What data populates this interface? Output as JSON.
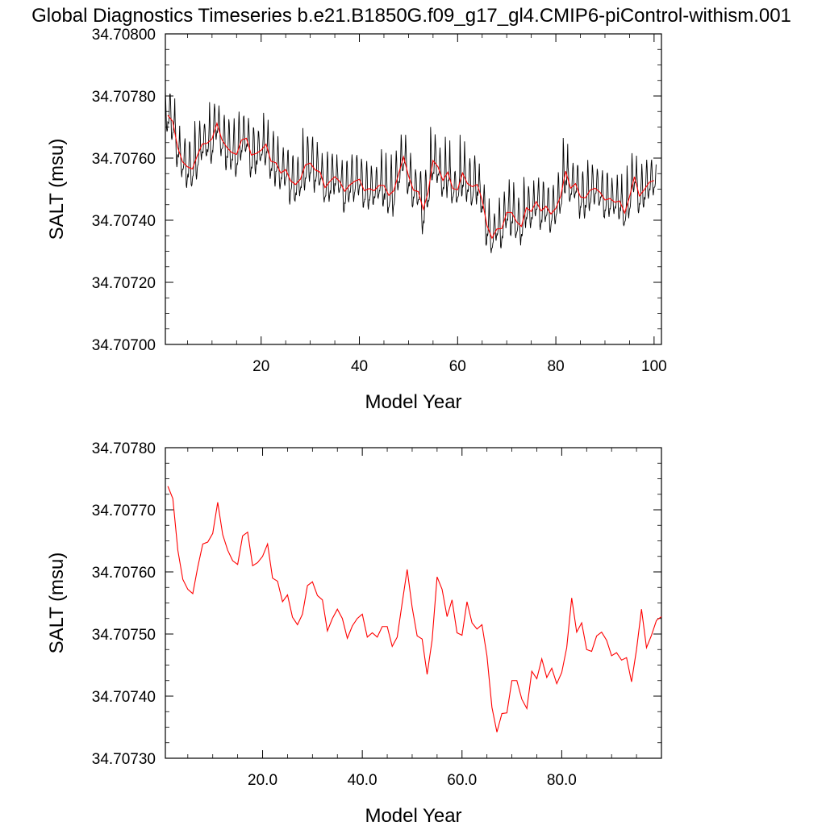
{
  "title": "Global Diagnostics Timeseries b.e21.B1850G.f09_g17_gl4.CMIP6-piControl-withism.001",
  "colors": {
    "monthly": "#000000",
    "annual": "#ff0000",
    "axis": "#000000"
  },
  "chart_data": [
    {
      "type": "line",
      "xlabel": "Model Year",
      "ylabel": "SALT (msu)",
      "xlim": [
        0.5,
        101.5
      ],
      "ylim": [
        34.707,
        34.708
      ],
      "x_ticks": [
        20,
        40,
        60,
        80,
        100
      ],
      "x_tick_labels": [
        "20",
        "40",
        "60",
        "80",
        "100"
      ],
      "y_ticks": [
        34.707,
        34.7072,
        34.7074,
        34.7076,
        34.7078,
        34.708
      ],
      "y_tick_labels": [
        "34.70700",
        "34.70720",
        "34.70740",
        "34.70760",
        "34.70780",
        "34.70800"
      ],
      "grid": false,
      "series": [
        {
          "color": "#000000",
          "description": "monthly seasonal cycle, one sample per month (derived from the annual series plus seasonal amplitude)",
          "seasonal_amplitude": [
            0.0001,
            0.00013,
            0.0001,
            8e-05,
            0.00014,
            0.0001,
            0.00013,
            0.0001
          ],
          "x_start": 0.5,
          "points_per_year": 12
        },
        {
          "color": "#ff0000",
          "source": "annual_means"
        }
      ]
    },
    {
      "type": "line",
      "xlabel": "Model Year",
      "ylabel": "SALT (msu)",
      "xlim": [
        0.5,
        100
      ],
      "ylim": [
        34.7073,
        34.7078
      ],
      "x_ticks": [
        20,
        40,
        60,
        80
      ],
      "x_tick_labels": [
        "20.0",
        "40.0",
        "60.0",
        "80.0"
      ],
      "y_ticks": [
        34.7073,
        34.7074,
        34.7075,
        34.7076,
        34.7077,
        34.7078
      ],
      "y_tick_labels": [
        "34.70730",
        "34.70740",
        "34.70750",
        "34.70760",
        "34.70770",
        "34.70780"
      ],
      "grid": false,
      "series": [
        {
          "color": "#ff0000",
          "source": "annual_means"
        }
      ]
    }
  ],
  "annual_means": {
    "x": [
      1,
      2,
      3,
      4,
      5,
      6,
      7,
      8,
      9,
      10,
      11,
      12,
      13,
      14,
      15,
      16,
      17,
      18,
      19,
      20,
      21,
      22,
      23,
      24,
      25,
      26,
      27,
      28,
      29,
      30,
      31,
      32,
      33,
      34,
      35,
      36,
      37,
      38,
      39,
      40,
      41,
      42,
      43,
      44,
      45,
      46,
      47,
      48,
      49,
      50,
      51,
      52,
      53,
      54,
      55,
      56,
      57,
      58,
      59,
      60,
      61,
      62,
      63,
      64,
      65,
      66,
      67,
      68,
      69,
      70,
      71,
      72,
      73,
      74,
      75,
      76,
      77,
      78,
      79,
      80,
      81,
      82,
      83,
      84,
      85,
      86,
      87,
      88,
      89,
      90,
      91,
      92,
      93,
      94,
      95,
      96,
      97,
      98,
      99,
      100
    ],
    "y": [
      34.707738,
      34.707718,
      34.707635,
      34.707588,
      34.707572,
      34.707565,
      34.707608,
      34.707645,
      34.707648,
      34.707662,
      34.707712,
      34.70766,
      34.707635,
      34.707618,
      34.707612,
      34.707658,
      34.707664,
      34.70761,
      34.707615,
      34.707625,
      34.707645,
      34.70759,
      34.707585,
      34.707552,
      34.707563,
      34.707527,
      34.707515,
      34.707532,
      34.707578,
      34.707584,
      34.707562,
      34.707555,
      34.707505,
      34.707525,
      34.70754,
      34.707525,
      34.707493,
      34.707513,
      34.707525,
      34.707532,
      34.707495,
      34.707502,
      34.707495,
      34.707512,
      34.707512,
      34.70748,
      34.707495,
      34.70755,
      34.707604,
      34.707543,
      34.707497,
      34.707492,
      34.707435,
      34.70749,
      34.707592,
      34.707572,
      34.707528,
      34.707555,
      34.707502,
      34.707498,
      34.707552,
      34.707518,
      34.707508,
      34.707515,
      34.707465,
      34.707382,
      34.707342,
      34.707372,
      34.707373,
      34.707425,
      34.707425,
      34.707395,
      34.70738,
      34.70744,
      34.707428,
      34.70746,
      34.70743,
      34.707445,
      34.70742,
      34.707438,
      34.707478,
      34.707558,
      34.707503,
      34.707518,
      34.707475,
      34.707472,
      34.707497,
      34.707503,
      34.70749,
      34.707465,
      34.70747,
      34.707458,
      34.707462,
      34.707423,
      34.707475,
      34.70754,
      34.707478,
      34.707498,
      34.707522,
      34.707528
    ]
  }
}
